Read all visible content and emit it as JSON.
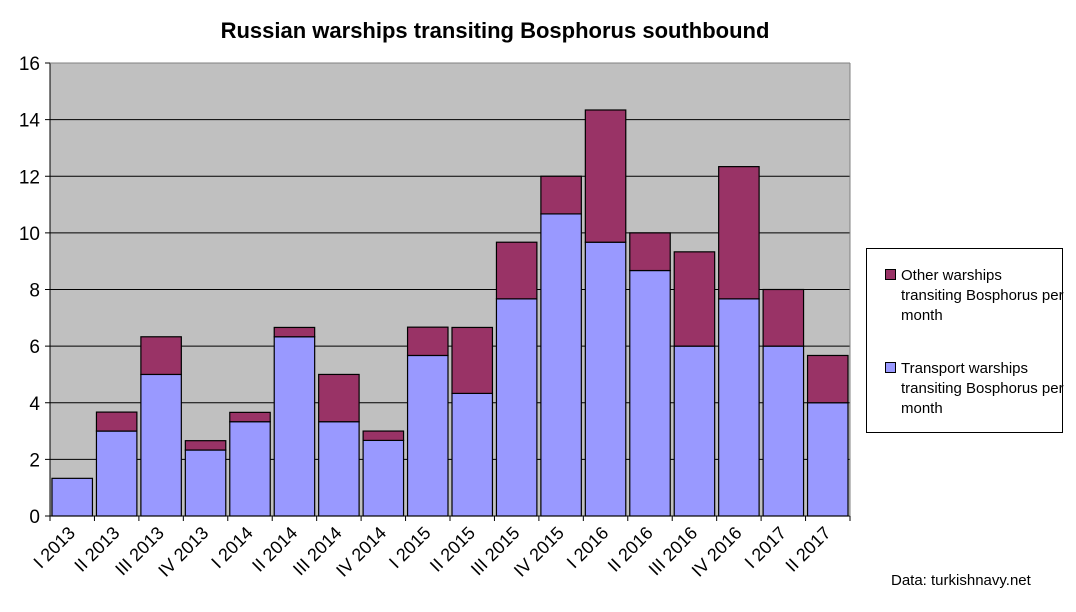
{
  "chart_data": {
    "type": "bar",
    "stacked": true,
    "title": "Russian warships transiting Bosphorus southbound",
    "categories": [
      "I 2013",
      "II 2013",
      "III 2013",
      "IV 2013",
      "I 2014",
      "II 2014",
      "III 2014",
      "IV 2014",
      "I 2015",
      "II 2015",
      "III 2015",
      "IV 2015",
      "I 2016",
      "II 2016",
      "III 2016",
      "IV 2016",
      "I 2017",
      "II 2017"
    ],
    "series": [
      {
        "name": "Transport warships transiting Bosphorus per month",
        "color": "#9999ff",
        "values": [
          1.33,
          3.0,
          5.0,
          2.33,
          3.33,
          6.33,
          3.33,
          2.67,
          5.67,
          4.33,
          7.67,
          10.67,
          9.67,
          8.67,
          6.0,
          7.67,
          6.0,
          4.0
        ]
      },
      {
        "name": "Other warships transiting Bosphorus per month",
        "color": "#993366",
        "values": [
          0,
          0.67,
          1.33,
          0.33,
          0.33,
          0.33,
          1.67,
          0.33,
          1.0,
          2.33,
          2.0,
          1.33,
          4.67,
          1.33,
          3.33,
          4.67,
          2.0,
          1.67
        ]
      }
    ],
    "ylim": [
      0,
      16
    ],
    "yticks": [
      0,
      2,
      4,
      6,
      8,
      10,
      12,
      14,
      16
    ],
    "grid": true,
    "plot_background": "#c0c0c0",
    "legend_position": "right"
  },
  "legend": {
    "items": [
      {
        "label": "Other warships transiting Bosphorus per month",
        "color": "#993366"
      },
      {
        "label": "Transport warships transiting Bosphorus per month",
        "color": "#9999ff"
      }
    ]
  },
  "source": "Data: turkishnavy.net"
}
